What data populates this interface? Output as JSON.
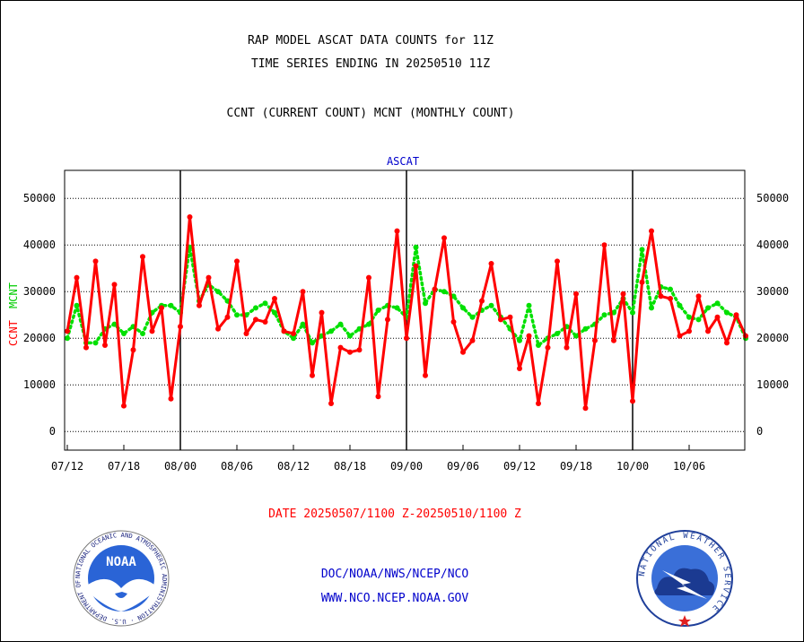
{
  "titles": {
    "line1": "RAP MODEL ASCAT DATA COUNTS for 11Z",
    "line2": "TIME SERIES ENDING IN 20250510 11Z",
    "line3": "CCNT (CURRENT COUNT) MCNT (MONTHLY COUNT)"
  },
  "footer": {
    "date_range": "DATE 20250507/1100 Z-20250510/1100 Z",
    "org": "DOC/NOAA/NWS/NCEP/NCO",
    "url": "WWW.NCO.NCEP.NOAA.GOV"
  },
  "logos": {
    "left": {
      "text": "NOAA",
      "ring_text": "NATIONAL OCEANIC AND ATMOSPHERIC ADMINISTRATION · U.S. DEPARTMENT OF COMMERCE"
    },
    "right": {
      "ring_text": "NATIONAL WEATHER SERVICE"
    }
  },
  "colors": {
    "ccnt": "#ff0000",
    "mcnt": "#00e000",
    "title_blue": "#0000cc",
    "footer_red": "#ff0000"
  },
  "chart_data": {
    "type": "line",
    "title": "ASCAT",
    "ylabel_ccnt": "CCNT",
    "ylabel_mcnt": "MCNT",
    "ylim": [
      -4000,
      56000
    ],
    "yticks": [
      "0",
      "10000",
      "20000",
      "30000",
      "40000",
      "50000"
    ],
    "xticks": [
      "07/12",
      "07/18",
      "08/00",
      "08/06",
      "08/12",
      "08/18",
      "09/00",
      "09/06",
      "09/12",
      "09/18",
      "10/00",
      "10/06"
    ],
    "grid": true,
    "series": [
      {
        "name": "CCNT",
        "values": [
          21500,
          33000,
          18000,
          36500,
          18500,
          31500,
          5500,
          17500,
          37500,
          21500,
          26500,
          7000,
          22500,
          46000,
          27000,
          33000,
          22000,
          24500,
          36500,
          21000,
          24000,
          23500,
          28500,
          21500,
          21000,
          30000,
          12000,
          25500,
          6000,
          18000,
          17000,
          17500,
          33000,
          7500,
          24000,
          43000,
          20000,
          35500,
          12000,
          30500,
          41500,
          23500,
          17000,
          19500,
          28000,
          36000,
          24000,
          24500,
          13500,
          20500,
          6000,
          18000,
          36500,
          18000,
          29500,
          5000,
          19500,
          40000,
          19500,
          29500,
          6500,
          32000,
          43000,
          29000,
          28500,
          20500,
          21500,
          29000,
          21500,
          24500,
          19000,
          25000,
          20500
        ]
      },
      {
        "name": "MCNT",
        "values": [
          20000,
          27000,
          19000,
          19000,
          22000,
          23000,
          21000,
          22500,
          21000,
          25500,
          27000,
          27000,
          25500,
          39500,
          28000,
          31500,
          30000,
          28000,
          25000,
          25000,
          26500,
          27500,
          25500,
          21500,
          20000,
          23000,
          19000,
          20500,
          21500,
          23000,
          20500,
          22000,
          23000,
          26000,
          27000,
          26500,
          24500,
          39500,
          27500,
          30500,
          30000,
          29000,
          26500,
          24500,
          26000,
          27000,
          24500,
          22000,
          19500,
          27000,
          18500,
          20000,
          21000,
          22500,
          20500,
          22000,
          23000,
          25000,
          25500,
          28500,
          25500,
          39000,
          26500,
          31000,
          30500,
          27000,
          24500,
          24000,
          26500,
          27500,
          25500,
          24500,
          20000
        ]
      }
    ]
  }
}
